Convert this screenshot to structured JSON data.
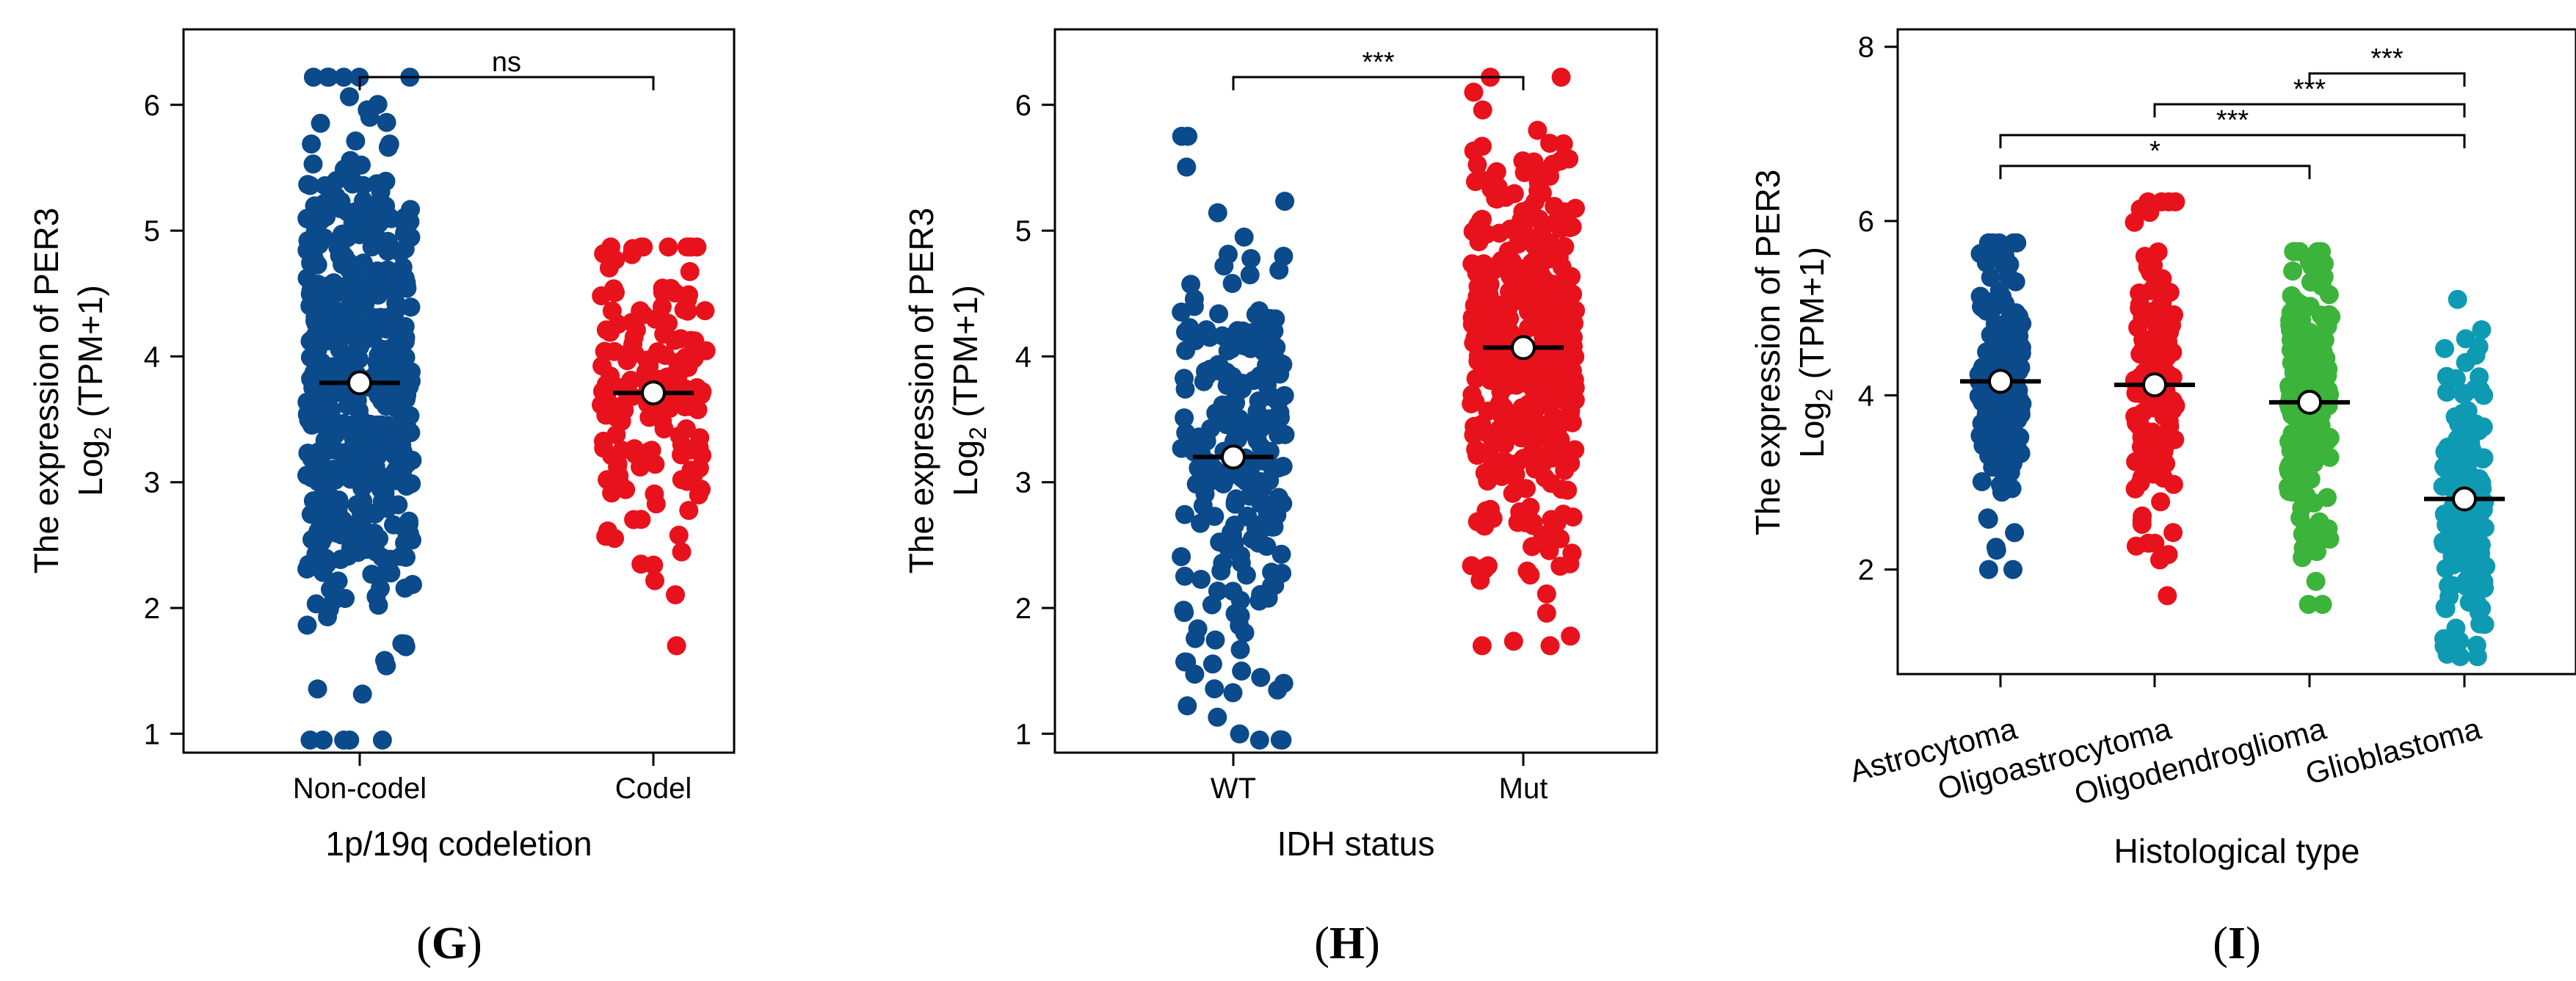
{
  "chart_data": [
    {
      "type": "scatter",
      "panel_label_prefix": "(",
      "panel_letter": "G",
      "panel_label_suffix": ")",
      "ylabel_line1": "The expression of PER3",
      "ylabel_line2_base": "Log",
      "ylabel_line2_sub": "2",
      "ylabel_line2_rest": " (TPM+1)",
      "xlabel": "1p/19q codeletion",
      "ylim": [
        0.85,
        6.6
      ],
      "yticks": [
        1,
        2,
        3,
        4,
        5,
        6
      ],
      "categories": [
        "Non-codel",
        "Codel"
      ],
      "colors": [
        "#0b4a8b",
        "#e8121c"
      ],
      "n_points": [
        520,
        170
      ],
      "ranges": [
        [
          0.95,
          6.22
        ],
        [
          1.7,
          4.87
        ]
      ],
      "means": [
        3.79,
        3.71
      ],
      "mean_ci": [
        0.05,
        0.07
      ],
      "jitter": 0.18,
      "significance": [
        {
          "from": 0,
          "to": 1,
          "label": "ns"
        }
      ]
    },
    {
      "type": "scatter",
      "panel_label_prefix": "(",
      "panel_letter": "H",
      "panel_label_suffix": ")",
      "ylabel_line1": "The expression of PER3",
      "ylabel_line2_base": "Log",
      "ylabel_line2_sub": "2",
      "ylabel_line2_rest": " (TPM+1)",
      "xlabel": "IDH status",
      "ylim": [
        0.85,
        6.6
      ],
      "yticks": [
        1,
        2,
        3,
        4,
        5,
        6
      ],
      "categories": [
        "WT",
        "Mut"
      ],
      "colors": [
        "#0b4a8b",
        "#e8121c"
      ],
      "n_points": [
        230,
        440
      ],
      "ranges": [
        [
          0.95,
          5.75
        ],
        [
          1.7,
          6.22
        ]
      ],
      "means": [
        3.2,
        4.07
      ],
      "mean_ci": [
        0.09,
        0.05
      ],
      "jitter": 0.18,
      "significance": [
        {
          "from": 0,
          "to": 1,
          "label": "***"
        }
      ]
    },
    {
      "type": "scatter",
      "panel_label_prefix": "(",
      "panel_letter": "I",
      "panel_label_suffix": ")",
      "ylabel_line1": "The expression of PER3",
      "ylabel_line2_base": "Log",
      "ylabel_line2_sub": "2",
      "ylabel_line2_rest": " (TPM+1)",
      "xlabel": "Histological type",
      "ylim": [
        0.8,
        8.2
      ],
      "yticks": [
        2,
        4,
        6,
        8
      ],
      "categories": [
        "Astrocytoma",
        "Oligoastrocytoma",
        "Oligodendroglioma",
        "Glioblastoma"
      ],
      "colors": [
        "#0b4a8b",
        "#e8121c",
        "#3cb33a",
        "#0f9ab3"
      ],
      "n_points": [
        190,
        130,
        190,
        160
      ],
      "ranges": [
        [
          2.0,
          5.75
        ],
        [
          1.7,
          6.22
        ],
        [
          1.6,
          5.65
        ],
        [
          1.0,
          5.1
        ]
      ],
      "means": [
        4.16,
        4.12,
        3.92,
        2.81
      ],
      "mean_ci": [
        0.07,
        0.09,
        0.07,
        0.09
      ],
      "jitter": 0.14,
      "significance": [
        {
          "from": 2,
          "to": 3,
          "label": "***"
        },
        {
          "from": 1,
          "to": 3,
          "label": "***"
        },
        {
          "from": 0,
          "to": 3,
          "label": "***"
        },
        {
          "from": 0,
          "to": 2,
          "label": "*"
        }
      ]
    }
  ]
}
